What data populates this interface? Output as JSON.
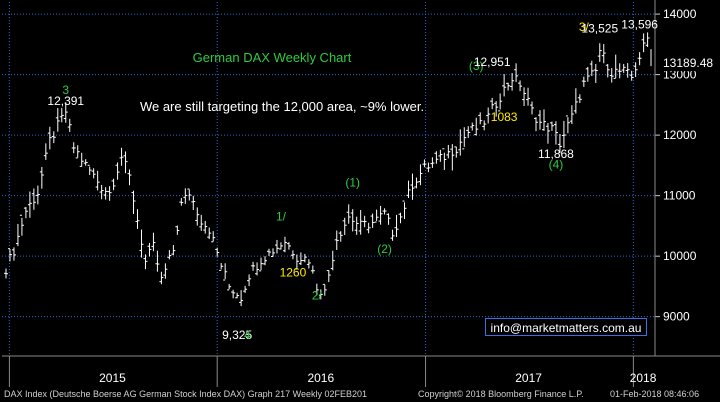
{
  "chart_data": {
    "type": "line",
    "style": "weekly-bar",
    "title": "German DAX Weekly Chart",
    "subtitle": "We are still targeting the 12,000 area, ~9% lower.",
    "xlabel": "",
    "ylabel": "",
    "ylim": [
      8350,
      14200
    ],
    "y_ticks": [
      "14000",
      "13000",
      "12000",
      "11000",
      "10000",
      "9000"
    ],
    "x_ticks": [
      "2015",
      "2016",
      "2017",
      "2018"
    ],
    "grid": true,
    "y_axis_side": "right",
    "last_price": "13189.48",
    "x": [
      "2014-12-26",
      "2015-01-09",
      "2015-01-30",
      "2015-02-20",
      "2015-03-13",
      "2015-04-10",
      "2015-04-24",
      "2015-05-15",
      "2015-06-12",
      "2015-06-26",
      "2015-07-17",
      "2015-07-31",
      "2015-08-21",
      "2015-08-28",
      "2015-09-11",
      "2015-09-25",
      "2015-10-16",
      "2015-10-30",
      "2015-11-13",
      "2015-12-04",
      "2015-12-18",
      "2016-01-08",
      "2016-01-22",
      "2016-02-12",
      "2016-02-26",
      "2016-03-18",
      "2016-04-08",
      "2016-04-29",
      "2016-05-20",
      "2016-06-10",
      "2016-06-24",
      "2016-07-08",
      "2016-07-29",
      "2016-08-19",
      "2016-09-09",
      "2016-09-30",
      "2016-10-21",
      "2016-11-04",
      "2016-11-18",
      "2016-12-09",
      "2016-12-30",
      "2017-01-27",
      "2017-02-24",
      "2017-03-17",
      "2017-04-07",
      "2017-04-21",
      "2017-05-12",
      "2017-06-02",
      "2017-06-16",
      "2017-07-07",
      "2017-07-21",
      "2017-08-11",
      "2017-08-25",
      "2017-09-15",
      "2017-10-06",
      "2017-10-27",
      "2017-11-03",
      "2017-11-24",
      "2017-12-15",
      "2017-12-29",
      "2018-01-12",
      "2018-01-26",
      "2018-02-01"
    ],
    "values": [
      9800,
      10100,
      10750,
      11050,
      11900,
      12391,
      11800,
      11500,
      11150,
      11050,
      11650,
      11300,
      10250,
      9900,
      10150,
      9600,
      10100,
      10850,
      11050,
      10600,
      10450,
      9850,
      9500,
      9325,
      9700,
      9950,
      10100,
      10250,
      10000,
      9950,
      9500,
      9400,
      10300,
      10650,
      10500,
      10550,
      10700,
      10400,
      10650,
      11200,
      11450,
      11600,
      11800,
      12050,
      12150,
      12300,
      12650,
      12951,
      12850,
      12400,
      12200,
      12100,
      11868,
      12300,
      12850,
      13050,
      13400,
      13050,
      13050,
      12950,
      13300,
      13596,
      13189.48
    ],
    "annotations": [
      {
        "text": "3",
        "x": "2015-04-10",
        "y": 12680,
        "color": "#2ecc40"
      },
      {
        "text": "12,391",
        "x": "2015-04-10",
        "y": 12500,
        "color": "#ffffff"
      },
      {
        "text": "9,325",
        "x": "2016-02-05",
        "y": 8630,
        "color": "#ffffff"
      },
      {
        "text": "4",
        "x": "2016-02-23",
        "y": 8630,
        "color": "#2ecc40"
      },
      {
        "text": "1/",
        "x": "2016-04-22",
        "y": 10590,
        "color": "#2ecc40"
      },
      {
        "text": "1260",
        "x": "2016-05-13",
        "y": 9660,
        "color": "#ffea00"
      },
      {
        "text": "2/",
        "x": "2016-06-24",
        "y": 9280,
        "color": "#2ecc40"
      },
      {
        "text": "(1)",
        "x": "2016-08-26",
        "y": 11150,
        "color": "#2ecc40"
      },
      {
        "text": "(2)",
        "x": "2016-10-21",
        "y": 10050,
        "color": "#2ecc40"
      },
      {
        "text": "(3)",
        "x": "2017-03-31",
        "y": 13080,
        "color": "#2ecc40"
      },
      {
        "text": "12,951",
        "x": "2017-04-28",
        "y": 13140,
        "color": "#ffffff"
      },
      {
        "text": "1083",
        "x": "2017-05-19",
        "y": 12230,
        "color": "#ffea00"
      },
      {
        "text": "11,868",
        "x": "2017-08-18",
        "y": 11620,
        "color": "#ffffff"
      },
      {
        "text": "(4)",
        "x": "2017-08-18",
        "y": 11450,
        "color": "#2ecc40"
      },
      {
        "text": "3/",
        "x": "2017-10-06",
        "y": 13720,
        "color": "#ffea00"
      },
      {
        "text": "13,525",
        "x": "2017-11-03",
        "y": 13700,
        "color": "#ffffff"
      },
      {
        "text": "13,596",
        "x": "2018-01-12",
        "y": 13760,
        "color": "#ffffff"
      }
    ]
  },
  "overlay": {
    "email": "info@marketmatters.com.au"
  },
  "footer": {
    "left": "DAX Index (Deutsche Boerse AG German Stock Index DAX) Graph 217  Weekly 02FEB201",
    "middle": "Copyright© 2018 Bloomberg Finance L.P.",
    "right": "01-Feb-2018 08:46:06"
  },
  "colors": {
    "background": "#000000",
    "bars": "#ffffff",
    "grid": "#2a6bd6",
    "title": "#2ecc40",
    "wave_label": "#2ecc40",
    "fib_label": "#ffea00",
    "price_label": "#ffffff"
  }
}
